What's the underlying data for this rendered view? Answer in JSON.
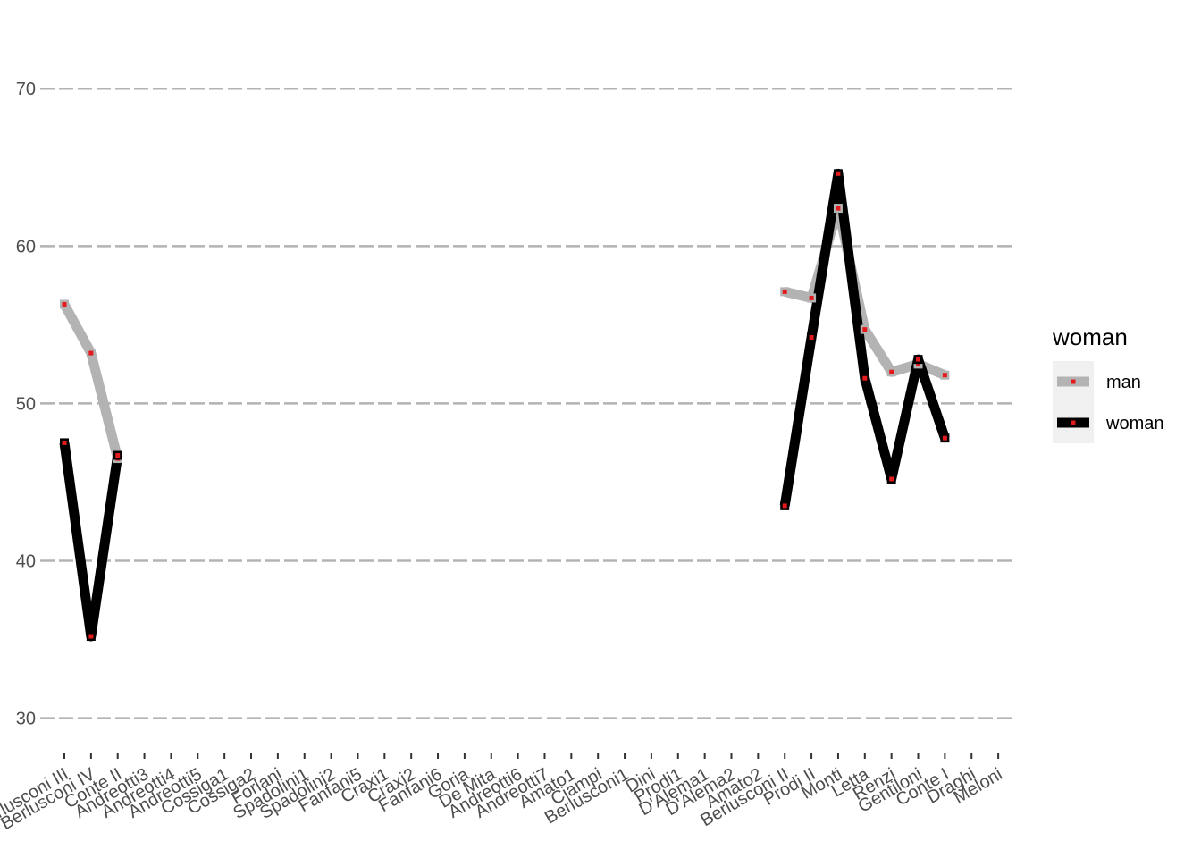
{
  "chart_data": {
    "type": "line",
    "categories": [
      "Berlusconi III",
      "Berlusconi IV",
      "Conte II",
      "Andreotti3",
      "Andreotti4",
      "Andreotti5",
      "Cossiga1",
      "Cossiga2",
      "Forlani",
      "Spadolini1",
      "Spadolini2",
      "Fanfani5",
      "Craxi1",
      "Craxi2",
      "Fanfani6",
      "Goria",
      "De Mita",
      "Andreotti6",
      "Andreotti7",
      "Amato1",
      "Ciampi",
      "Berlusconi1",
      "Dini",
      "Prodi1",
      "D'Alema1",
      "D'Alema2",
      "Amato2",
      "Berlusconi II",
      "Prodi II",
      "Monti",
      "Letta",
      "Renzi",
      "Gentiloni",
      "Conte I",
      "Draghi",
      "Meloni"
    ],
    "series": [
      {
        "name": "man",
        "values": [
          56.3,
          53.2,
          46.5,
          null,
          null,
          null,
          null,
          null,
          null,
          null,
          null,
          null,
          null,
          null,
          null,
          null,
          null,
          null,
          null,
          null,
          null,
          null,
          null,
          null,
          null,
          null,
          null,
          57.1,
          56.7,
          62.4,
          54.7,
          52.0,
          52.5,
          51.8,
          null,
          null
        ]
      },
      {
        "name": "woman",
        "values": [
          47.5,
          35.2,
          46.7,
          null,
          null,
          null,
          null,
          null,
          null,
          null,
          null,
          null,
          null,
          null,
          null,
          null,
          null,
          null,
          null,
          null,
          null,
          null,
          null,
          null,
          null,
          null,
          null,
          43.5,
          54.2,
          64.6,
          51.6,
          45.2,
          52.8,
          47.8,
          null,
          null
        ]
      }
    ],
    "colors": {
      "man": "#b3b3b3",
      "woman": "#000000",
      "point": "#e41a1c",
      "grid": "#b3b3b3",
      "legend_bg": "#f0f0f0"
    },
    "y_ticks": [
      30,
      40,
      50,
      60,
      70
    ],
    "ylim": [
      28.5,
      74.5
    ],
    "grid": true,
    "legend": {
      "title": "woman",
      "position": "right",
      "entries": [
        "man",
        "woman"
      ]
    }
  }
}
